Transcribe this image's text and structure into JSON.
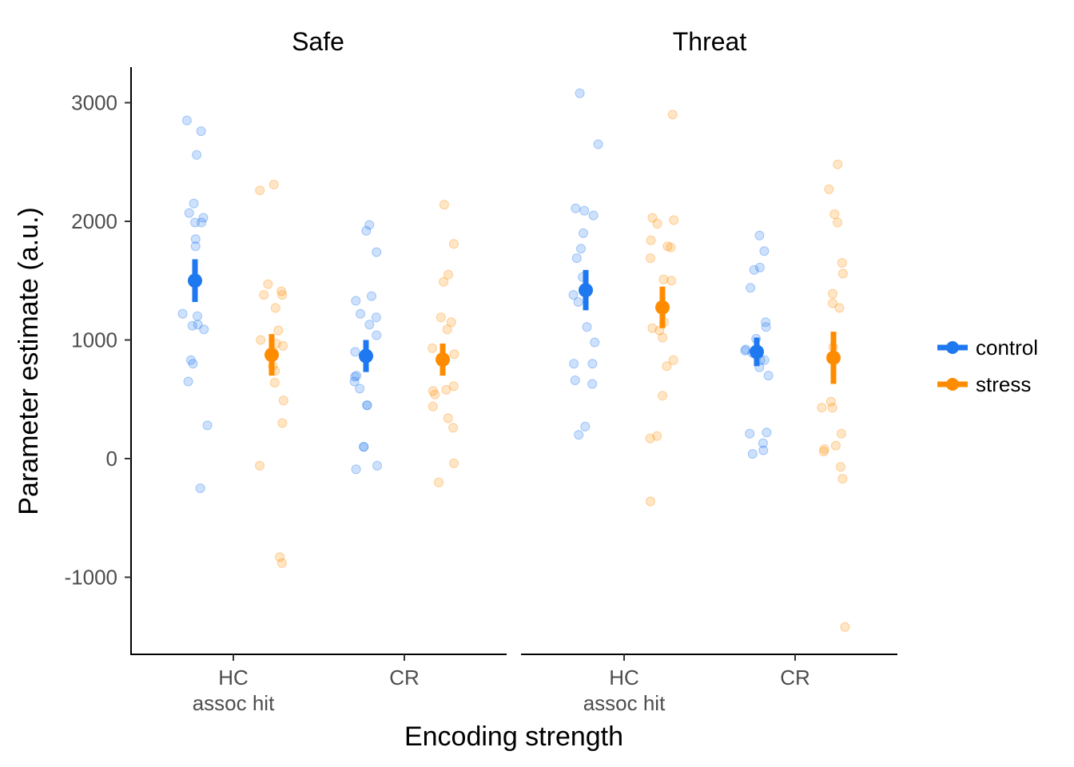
{
  "chart_data": {
    "type": "scatter",
    "xlabel": "Encoding strength",
    "ylabel": "Parameter estimate (a.u.)",
    "ylim": [
      -1650,
      3300
    ],
    "yticks": [
      -1000,
      0,
      1000,
      2000,
      3000
    ],
    "ytick_labels": [
      "-1000",
      "0",
      "1000",
      "2000",
      "3000"
    ],
    "categories": [
      {
        "line1": "HC",
        "line2": "assoc hit"
      },
      {
        "line1": "CR",
        "line2": ""
      }
    ],
    "legend": {
      "position": "right",
      "items": [
        {
          "group": "control",
          "label": "control",
          "color": "#1E78F0"
        },
        {
          "group": "stress",
          "label": "stress",
          "color": "#FF8C00"
        }
      ]
    },
    "grid": false,
    "panels": [
      {
        "title": "Safe",
        "cells": [
          {
            "category": "HC",
            "group": "control",
            "mean": 1500,
            "ci": [
              1320,
              1680
            ],
            "points": [
              2850,
              2760,
              2560,
              2150,
              2070,
              2030,
              1990,
              1990,
              1850,
              1790,
              1220,
              1200,
              1130,
              1120,
              1090,
              830,
              800,
              650,
              280,
              -250
            ]
          },
          {
            "category": "HC",
            "group": "stress",
            "mean": 875,
            "ci": [
              700,
              1050
            ],
            "points": [
              2310,
              2260,
              1470,
              1410,
              1380,
              1380,
              1270,
              1080,
              1000,
              970,
              950,
              880,
              780,
              740,
              640,
              490,
              300,
              -60,
              -830,
              -880
            ]
          },
          {
            "category": "CR",
            "group": "control",
            "mean": 865,
            "ci": [
              730,
              1000
            ],
            "points": [
              1970,
              1920,
              1740,
              1370,
              1330,
              1220,
              1190,
              1130,
              1040,
              900,
              700,
              690,
              650,
              590,
              450,
              450,
              100,
              100,
              -60,
              -90
            ]
          },
          {
            "category": "CR",
            "group": "stress",
            "mean": 835,
            "ci": [
              700,
              970
            ],
            "points": [
              2140,
              1810,
              1550,
              1490,
              1190,
              1150,
              1090,
              930,
              880,
              610,
              580,
              570,
              540,
              440,
              340,
              260,
              -40,
              -200
            ]
          }
        ]
      },
      {
        "title": "Threat",
        "cells": [
          {
            "category": "HC",
            "group": "control",
            "mean": 1420,
            "ci": [
              1250,
              1590
            ],
            "points": [
              3080,
              2650,
              2110,
              2090,
              2050,
              1900,
              1770,
              1690,
              1530,
              1410,
              1380,
              1320,
              1110,
              980,
              800,
              800,
              660,
              630,
              270,
              200
            ]
          },
          {
            "category": "HC",
            "group": "stress",
            "mean": 1275,
            "ci": [
              1100,
              1450
            ],
            "points": [
              2900,
              2030,
              2010,
              1980,
              1840,
              1790,
              1780,
              1690,
              1510,
              1500,
              1150,
              1100,
              1080,
              1020,
              830,
              780,
              530,
              190,
              170,
              -360
            ]
          },
          {
            "category": "CR",
            "group": "control",
            "mean": 900,
            "ci": [
              780,
              1020
            ],
            "points": [
              1880,
              1750,
              1610,
              1590,
              1440,
              1150,
              1110,
              1010,
              920,
              910,
              890,
              880,
              830,
              830,
              770,
              700,
              220,
              210,
              130,
              70,
              40
            ]
          },
          {
            "category": "CR",
            "group": "stress",
            "mean": 850,
            "ci": [
              630,
              1070
            ],
            "points": [
              2480,
              2270,
              2060,
              1990,
              1650,
              1560,
              1390,
              1310,
              1270,
              940,
              480,
              430,
              430,
              210,
              110,
              80,
              60,
              -70,
              -170,
              -1420
            ]
          }
        ]
      }
    ]
  }
}
